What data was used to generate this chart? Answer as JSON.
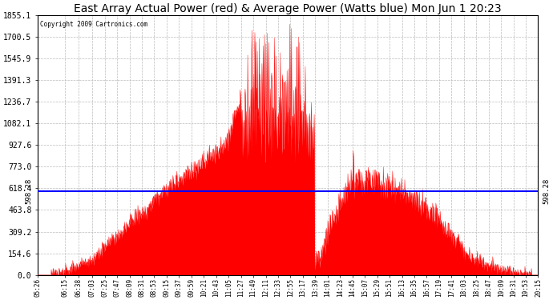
{
  "title": "East Array Actual Power (red) & Average Power (Watts blue) Mon Jun 1 20:23",
  "copyright_text": "Copyright 2009 Cartronics.com",
  "avg_power": 598.28,
  "y_max": 1855.1,
  "y_min": 0.0,
  "y_ticks": [
    0.0,
    154.6,
    309.2,
    463.8,
    618.4,
    773.0,
    927.6,
    1082.1,
    1236.7,
    1391.3,
    1545.9,
    1700.5,
    1855.1
  ],
  "x_labels": [
    "05:26",
    "06:15",
    "06:38",
    "07:03",
    "07:25",
    "07:47",
    "08:09",
    "08:31",
    "08:53",
    "09:15",
    "09:37",
    "09:59",
    "10:21",
    "10:43",
    "11:05",
    "11:27",
    "11:49",
    "12:11",
    "12:33",
    "12:55",
    "13:17",
    "13:39",
    "14:01",
    "14:23",
    "14:45",
    "15:07",
    "15:29",
    "15:51",
    "16:13",
    "16:35",
    "16:57",
    "17:19",
    "17:41",
    "18:03",
    "18:25",
    "18:47",
    "19:09",
    "19:31",
    "19:53",
    "20:15"
  ],
  "line_color": "blue",
  "fill_color": "red",
  "background_color": "white",
  "grid_color": "#bbbbbb",
  "title_fontsize": 10,
  "avg_label": "598.28",
  "figwidth": 6.9,
  "figheight": 3.75,
  "dpi": 100
}
